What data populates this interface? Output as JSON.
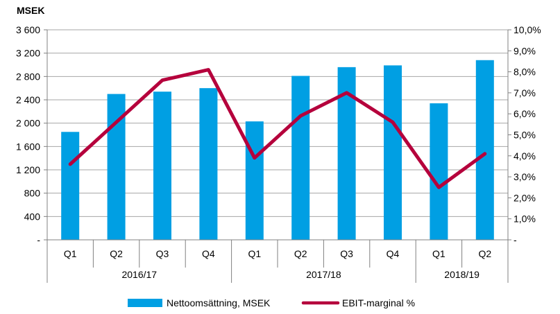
{
  "chart_data": {
    "type": "bar",
    "ylabel": "MSEK",
    "categories": [
      "Q1",
      "Q2",
      "Q3",
      "Q4",
      "Q1",
      "Q2",
      "Q3",
      "Q4",
      "Q1",
      "Q2"
    ],
    "groups": [
      {
        "label": "2016/17",
        "count": 4
      },
      {
        "label": "2017/18",
        "count": 4
      },
      {
        "label": "2018/19",
        "count": 2
      }
    ],
    "series": [
      {
        "name": "Nettoomsättning, MSEK",
        "type": "bar",
        "axis": "left",
        "color": "#009fe3",
        "values": [
          1850,
          2500,
          2540,
          2600,
          2030,
          2810,
          2960,
          2990,
          2340,
          3080
        ]
      },
      {
        "name": "EBIT-marginal %",
        "type": "line",
        "axis": "right",
        "color": "#b5003c",
        "values": [
          3.6,
          5.6,
          7.6,
          8.1,
          3.9,
          5.9,
          7.0,
          5.6,
          2.5,
          4.1
        ]
      }
    ],
    "ylim_left": [
      0,
      3600
    ],
    "ylim_right": [
      0,
      10
    ],
    "left_ticks": [
      "-",
      "400",
      "800",
      "1 200",
      "1 600",
      "2 000",
      "2 400",
      "2 800",
      "3 200",
      "3 600"
    ],
    "right_ticks": [
      "-",
      "1,0%",
      "2,0%",
      "3,0%",
      "4,0%",
      "5,0%",
      "6,0%",
      "7,0%",
      "8,0%",
      "9,0%",
      "10,0%"
    ],
    "grid": true,
    "legend": "bottom-center"
  }
}
